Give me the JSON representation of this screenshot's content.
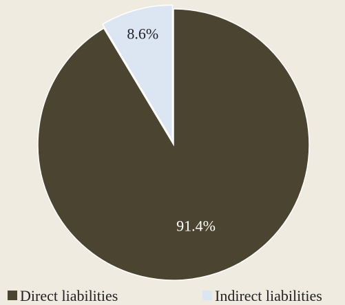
{
  "chart_data": {
    "type": "pie",
    "title": "",
    "start_angle_deg": 0,
    "direction": "clockwise",
    "legend_position": "bottom",
    "slices": [
      {
        "name": "Direct liabilities",
        "value": 91.4,
        "label": "91.4%",
        "color": "#4a4430",
        "label_color": "#ffffff"
      },
      {
        "name": "Indirect liabilities",
        "value": 8.6,
        "label": "8.6%",
        "color": "#dce6f2",
        "label_color": "#222222"
      }
    ]
  }
}
